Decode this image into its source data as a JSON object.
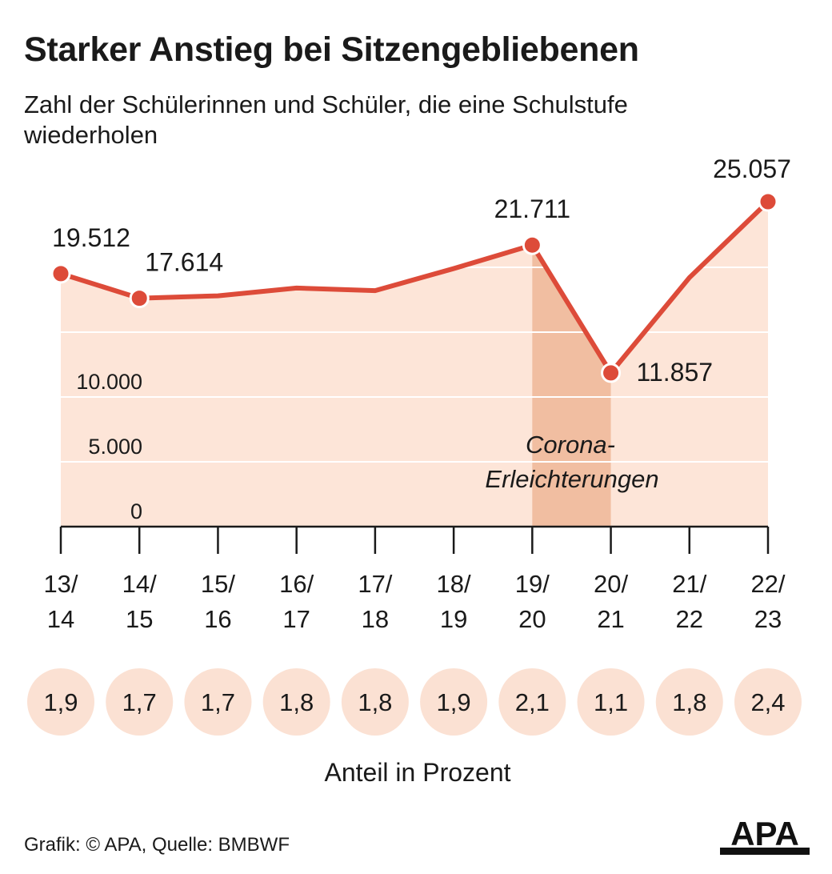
{
  "title": "Starker Anstieg bei Sitzengebliebenen",
  "subtitle": "Zahl der Schülerinnen und Schüler, die eine Schulstufe wiederholen",
  "chart_data": {
    "type": "area",
    "x": [
      "13/14",
      "14/15",
      "15/16",
      "16/17",
      "17/18",
      "18/19",
      "19/20",
      "20/21",
      "21/22",
      "22/23"
    ],
    "x_top": [
      "13/",
      "14/",
      "15/",
      "16/",
      "17/",
      "18/",
      "19/",
      "20/",
      "21/",
      "22/"
    ],
    "x_bottom": [
      "14",
      "15",
      "16",
      "17",
      "18",
      "19",
      "20",
      "21",
      "22",
      "23"
    ],
    "values": [
      19512,
      17614,
      17800,
      18400,
      18200,
      19900,
      21711,
      11857,
      19200,
      25057
    ],
    "labeled_points": [
      {
        "index": 0,
        "label": "19.512"
      },
      {
        "index": 1,
        "label": "17.614"
      },
      {
        "index": 6,
        "label": "21.711"
      },
      {
        "index": 7,
        "label": "11.857"
      },
      {
        "index": 9,
        "label": "25.057"
      }
    ],
    "y_ticks": [
      {
        "value": 0,
        "label": "0"
      },
      {
        "value": 5000,
        "label": "5.000"
      },
      {
        "value": 10000,
        "label": "10.000"
      },
      {
        "value": 15000,
        "label": ""
      },
      {
        "value": 20000,
        "label": ""
      }
    ],
    "ylim": [
      0,
      25057
    ],
    "highlight": {
      "from_index": 6,
      "to_index": 7,
      "label_line1": "Corona-",
      "label_line2": "Erleichterungen"
    },
    "percent": [
      "1,9",
      "1,7",
      "1,7",
      "1,8",
      "1,8",
      "1,9",
      "2,1",
      "1,1",
      "1,8",
      "2,4"
    ],
    "percent_caption": "Anteil in Prozent",
    "colors": {
      "line": "#dd4b39",
      "area": "#fde5d8",
      "highlight": "#f1bea1",
      "circle": "#fbe1d3",
      "grid": "#ffffff"
    }
  },
  "footer": "Grafik: © APA, Quelle: BMBWF",
  "logo_text": "APA"
}
